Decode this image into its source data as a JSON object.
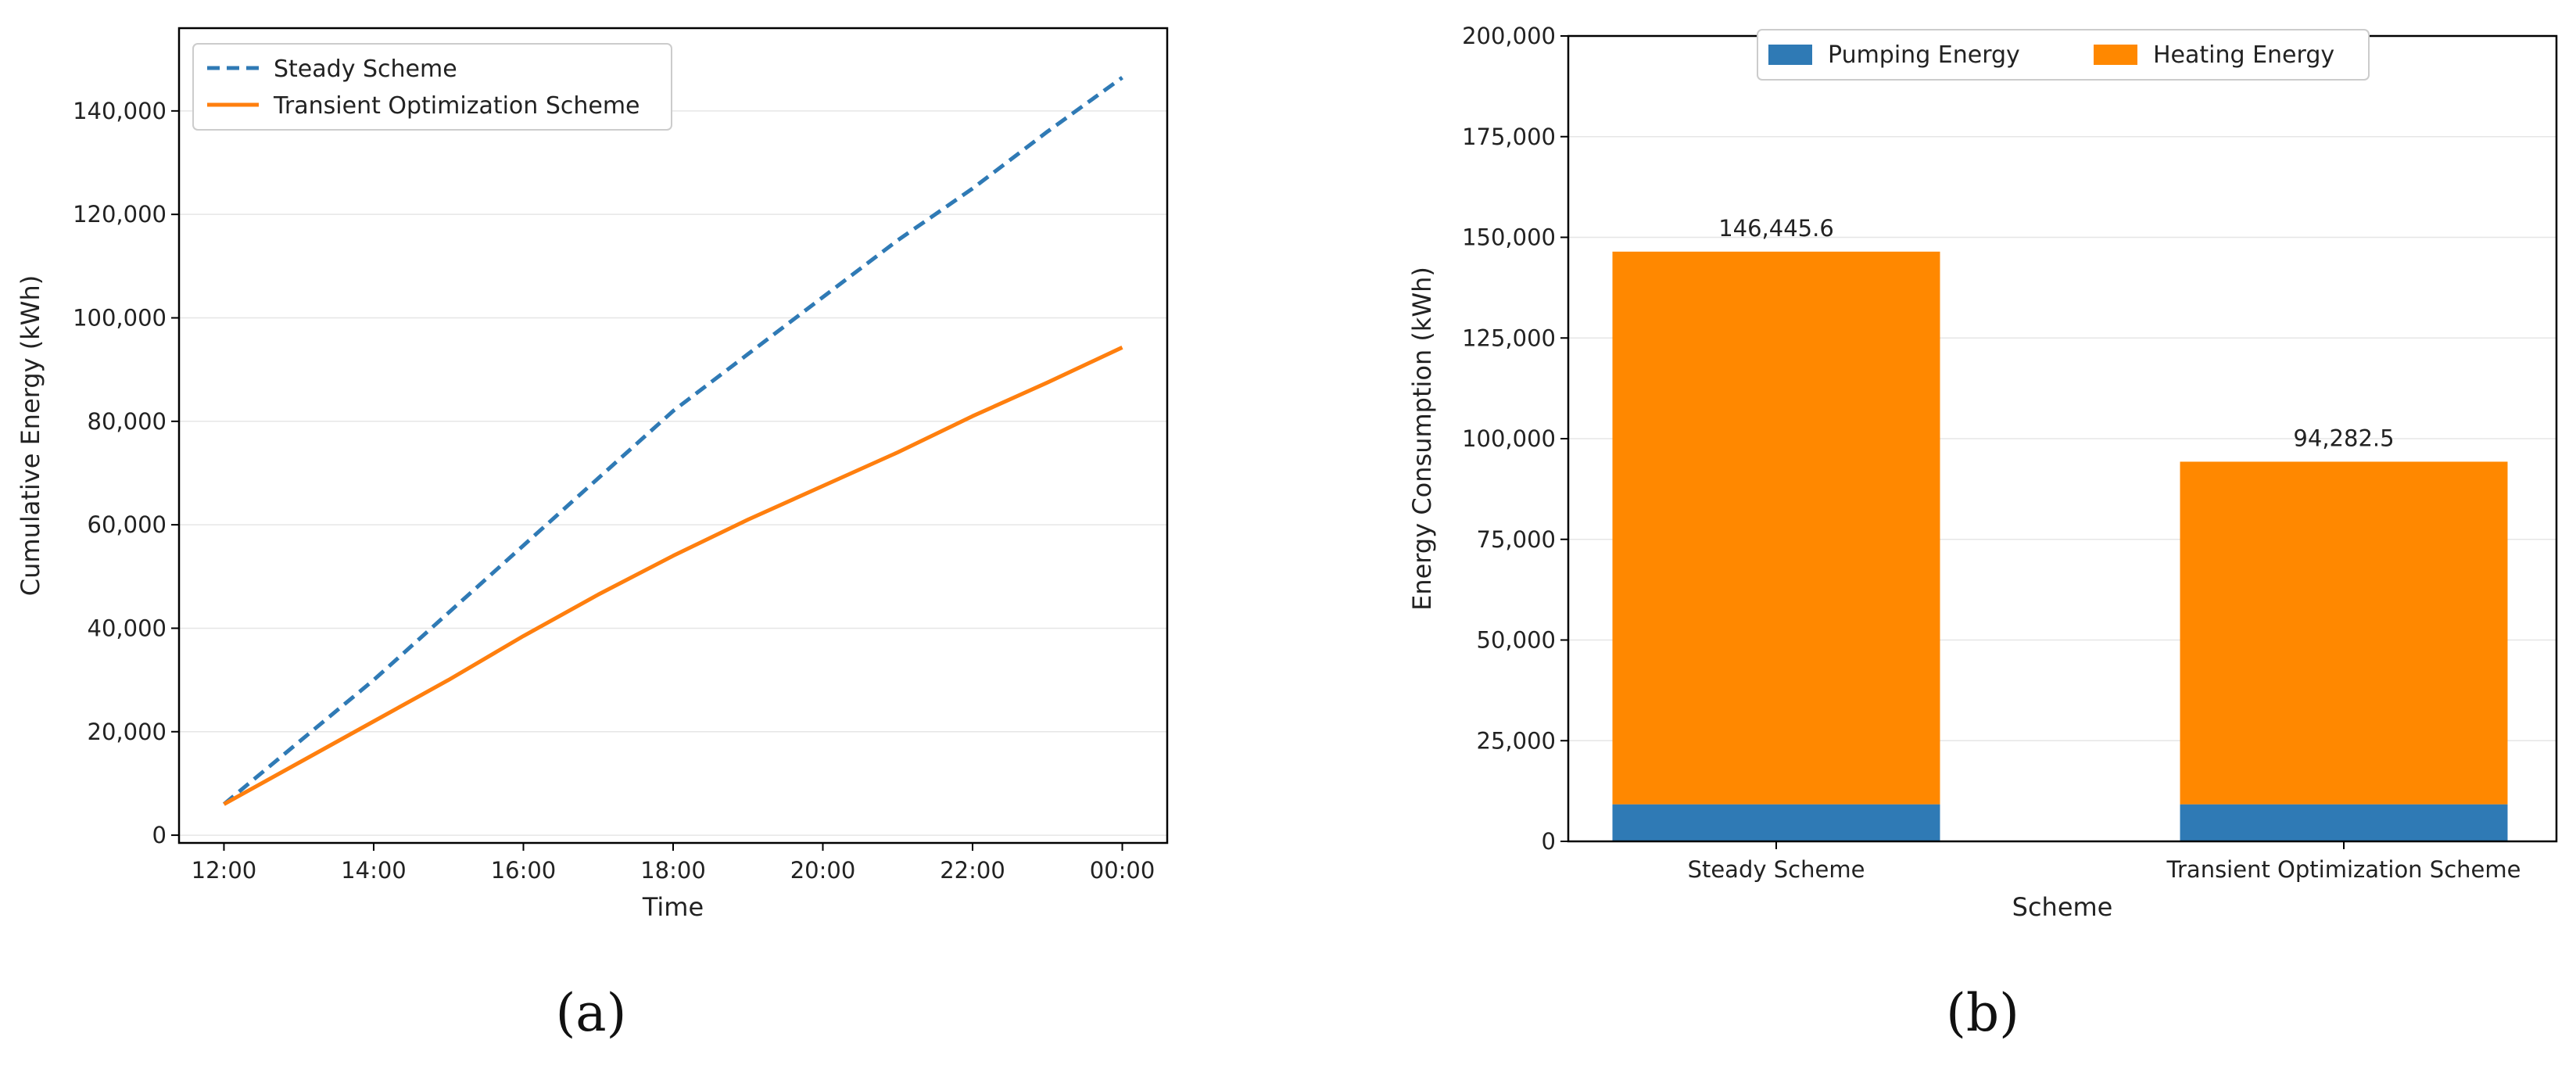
{
  "chart_data": [
    {
      "type": "line",
      "xlabel": "Time",
      "ylabel": "Cumulative Energy (kWh)",
      "x_ticks": [
        "12:00",
        "14:00",
        "16:00",
        "18:00",
        "20:00",
        "22:00",
        "00:00"
      ],
      "y_ticks": [
        "0",
        "20,000",
        "40,000",
        "60,000",
        "80,000",
        "100,000",
        "120,000",
        "140,000"
      ],
      "xlim_hours": [
        11.4,
        24.6
      ],
      "ylim": [
        -1500,
        156000
      ],
      "grid": "horizontal",
      "legend_position": "upper-left",
      "series": [
        {
          "name": "Steady Scheme",
          "style": "dashed",
          "color": "#2f7ab5",
          "x_hours": [
            12,
            13,
            14,
            15,
            16,
            17,
            18,
            19,
            20,
            21,
            22,
            23,
            24
          ],
          "values": [
            6000,
            18000,
            30000,
            43000,
            56000,
            69000,
            82000,
            93000,
            104000,
            115000,
            125000,
            136000,
            146445.6
          ]
        },
        {
          "name": "Transient Optimization Scheme",
          "style": "solid",
          "color": "#ff7f0e",
          "x_hours": [
            12,
            13,
            14,
            15,
            16,
            17,
            18,
            19,
            20,
            21,
            22,
            23,
            24
          ],
          "values": [
            6000,
            14000,
            22000,
            30000,
            38500,
            46500,
            54000,
            61000,
            67500,
            74000,
            81000,
            87500,
            94282.5
          ]
        }
      ],
      "panel_label": "(a)"
    },
    {
      "type": "bar",
      "stacked": true,
      "xlabel": "Scheme",
      "ylabel": "Energy Consumption (kWh)",
      "categories": [
        "Steady Scheme",
        "Transient Optimization Scheme"
      ],
      "y_ticks": [
        "0",
        "25,000",
        "50,000",
        "75,000",
        "100,000",
        "125,000",
        "150,000",
        "175,000",
        "200,000"
      ],
      "ylim": [
        0,
        200000
      ],
      "grid": "horizontal",
      "legend_position": "upper-center",
      "series": [
        {
          "name": "Pumping Energy",
          "color": "#2f7ab5",
          "values": [
            9200,
            9200
          ]
        },
        {
          "name": "Heating Energy",
          "color": "#ff8800",
          "values": [
            137245.6,
            85082.5
          ]
        }
      ],
      "totals": [
        146445.6,
        94282.5
      ],
      "total_labels": [
        "146,445.6",
        "94,282.5"
      ],
      "panel_label": "(b)"
    }
  ]
}
